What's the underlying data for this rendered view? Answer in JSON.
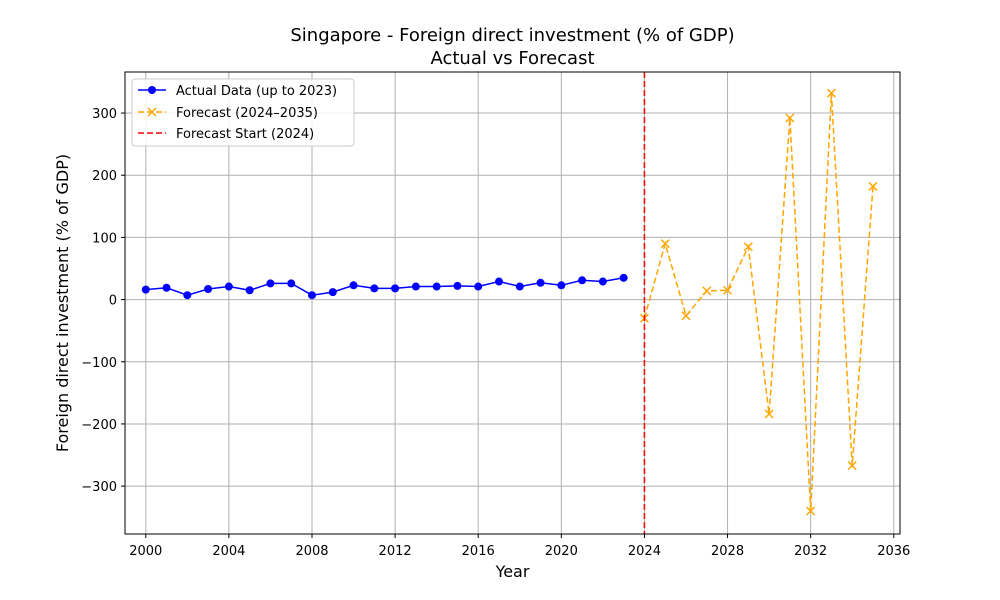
{
  "chart_data": {
    "type": "line",
    "title": "Singapore - Foreign direct investment (% of GDP)",
    "subtitle": "Actual vs Forecast",
    "xlabel": "Year",
    "ylabel": "Foreign direct investment (% of GDP)",
    "xlim": [
      1999,
      2036.3
    ],
    "ylim": [
      -377,
      366
    ],
    "xticks": [
      2000,
      2004,
      2008,
      2012,
      2016,
      2020,
      2024,
      2028,
      2032,
      2036
    ],
    "yticks": [
      -300,
      -200,
      -100,
      0,
      100,
      200,
      300
    ],
    "ytick_labels": [
      "−300",
      "−200",
      "−100",
      "0",
      "100",
      "200",
      "300"
    ],
    "grid": true,
    "legend_position": "upper-left",
    "series": [
      {
        "name": "Actual Data (up to 2023)",
        "color": "#0000ff",
        "style": "solid",
        "marker": "circle",
        "x": [
          2000,
          2001,
          2002,
          2003,
          2004,
          2005,
          2006,
          2007,
          2008,
          2009,
          2010,
          2011,
          2012,
          2013,
          2014,
          2015,
          2016,
          2017,
          2018,
          2019,
          2020,
          2021,
          2022,
          2023
        ],
        "y": [
          16,
          19,
          7,
          17,
          21,
          15,
          26,
          26,
          7,
          12,
          23,
          18,
          18,
          21,
          21,
          22,
          21,
          29,
          21,
          27,
          23,
          31,
          29,
          35
        ]
      },
      {
        "name": "Forecast (2024–2035)",
        "color": "#ffa500",
        "style": "dashed",
        "marker": "x",
        "x": [
          2024,
          2025,
          2026,
          2027,
          2028,
          2029,
          2030,
          2031,
          2032,
          2033,
          2034,
          2035
        ],
        "y": [
          -30,
          90,
          -26,
          14,
          15,
          85,
          -184,
          292,
          -340,
          332,
          -267,
          182
        ]
      }
    ],
    "vlines": [
      {
        "name": "Forecast Start (2024)",
        "x": 2024,
        "color": "#ff0000",
        "style": "dashed"
      }
    ]
  }
}
